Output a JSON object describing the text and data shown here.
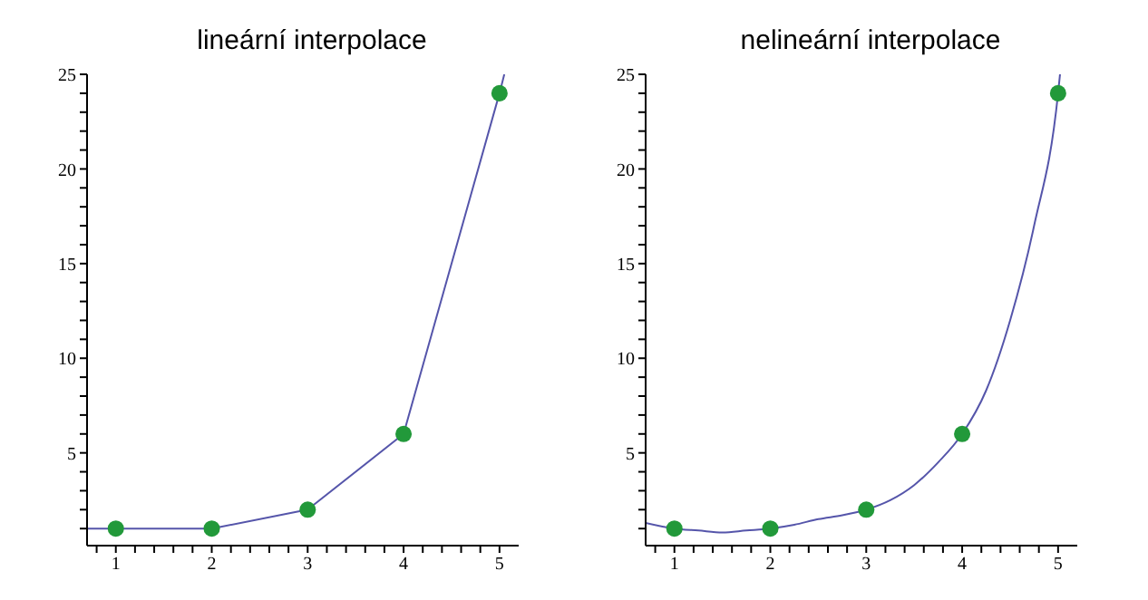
{
  "chart_data": [
    {
      "type": "line",
      "title": "lineární interpolace",
      "xlim": [
        0.7,
        5.2
      ],
      "ylim": [
        0.1,
        25
      ],
      "xticks": [
        {
          "value": 0.8,
          "label": null
        },
        1,
        {
          "value": 1.2,
          "label": null
        },
        {
          "value": 1.4,
          "label": null
        },
        {
          "value": 1.6,
          "label": null
        },
        {
          "value": 1.8,
          "label": null
        },
        2,
        {
          "value": 2.2,
          "label": null
        },
        {
          "value": 2.4,
          "label": null
        },
        {
          "value": 2.6,
          "label": null
        },
        {
          "value": 2.8,
          "label": null
        },
        3,
        {
          "value": 3.2,
          "label": null
        },
        {
          "value": 3.4,
          "label": null
        },
        {
          "value": 3.6,
          "label": null
        },
        {
          "value": 3.8,
          "label": null
        },
        4,
        {
          "value": 4.2,
          "label": null
        },
        {
          "value": 4.4,
          "label": null
        },
        {
          "value": 4.6,
          "label": null
        },
        {
          "value": 4.8,
          "label": null
        },
        5
      ],
      "yticks": [
        {
          "value": 1,
          "label": null
        },
        {
          "value": 2,
          "label": null
        },
        {
          "value": 3,
          "label": null
        },
        {
          "value": 4,
          "label": null
        },
        5,
        {
          "value": 6,
          "label": null
        },
        {
          "value": 7,
          "label": null
        },
        {
          "value": 8,
          "label": null
        },
        {
          "value": 9,
          "label": null
        },
        10,
        {
          "value": 11,
          "label": null
        },
        {
          "value": 12,
          "label": null
        },
        {
          "value": 13,
          "label": null
        },
        {
          "value": 14,
          "label": null
        },
        15,
        {
          "value": 16,
          "label": null
        },
        {
          "value": 17,
          "label": null
        },
        {
          "value": 18,
          "label": null
        },
        {
          "value": 19,
          "label": null
        },
        20,
        {
          "value": 21,
          "label": null
        },
        {
          "value": 22,
          "label": null
        },
        {
          "value": 23,
          "label": null
        },
        {
          "value": 24,
          "label": null
        },
        25
      ],
      "series": [
        {
          "color": "#5555aa",
          "marker": "none",
          "x": [
            0.7,
            1,
            2,
            3,
            4,
            5,
            5.05
          ],
          "values": [
            1,
            1,
            1,
            2,
            6,
            24,
            25
          ]
        },
        {
          "type": "scatter",
          "color": "#22993a",
          "marker": "circle",
          "x": [
            1,
            2,
            3,
            4,
            5
          ],
          "values": [
            1,
            1,
            2,
            6,
            24
          ]
        }
      ]
    },
    {
      "type": "line",
      "title": "nelineární interpolace",
      "xlim": [
        0.7,
        5.2
      ],
      "ylim": [
        0.1,
        25
      ],
      "xticks": [
        {
          "value": 0.8,
          "label": null
        },
        1,
        {
          "value": 1.2,
          "label": null
        },
        {
          "value": 1.4,
          "label": null
        },
        {
          "value": 1.6,
          "label": null
        },
        {
          "value": 1.8,
          "label": null
        },
        2,
        {
          "value": 2.2,
          "label": null
        },
        {
          "value": 2.4,
          "label": null
        },
        {
          "value": 2.6,
          "label": null
        },
        {
          "value": 2.8,
          "label": null
        },
        3,
        {
          "value": 3.2,
          "label": null
        },
        {
          "value": 3.4,
          "label": null
        },
        {
          "value": 3.6,
          "label": null
        },
        {
          "value": 3.8,
          "label": null
        },
        4,
        {
          "value": 4.2,
          "label": null
        },
        {
          "value": 4.4,
          "label": null
        },
        {
          "value": 4.6,
          "label": null
        },
        {
          "value": 4.8,
          "label": null
        },
        5
      ],
      "yticks": [
        {
          "value": 1,
          "label": null
        },
        {
          "value": 2,
          "label": null
        },
        {
          "value": 3,
          "label": null
        },
        {
          "value": 4,
          "label": null
        },
        5,
        {
          "value": 6,
          "label": null
        },
        {
          "value": 7,
          "label": null
        },
        {
          "value": 8,
          "label": null
        },
        {
          "value": 9,
          "label": null
        },
        10,
        {
          "value": 11,
          "label": null
        },
        {
          "value": 12,
          "label": null
        },
        {
          "value": 13,
          "label": null
        },
        {
          "value": 14,
          "label": null
        },
        15,
        {
          "value": 16,
          "label": null
        },
        {
          "value": 17,
          "label": null
        },
        {
          "value": 18,
          "label": null
        },
        {
          "value": 19,
          "label": null
        },
        20,
        {
          "value": 21,
          "label": null
        },
        {
          "value": 22,
          "label": null
        },
        {
          "value": 23,
          "label": null
        },
        {
          "value": 24,
          "label": null
        },
        25
      ],
      "series": [
        {
          "color": "#5555aa",
          "marker": "none",
          "line_style": "solid",
          "x": [
            0.7,
            1,
            1.25,
            1.5,
            1.75,
            2,
            2.25,
            2.5,
            2.75,
            3,
            3.25,
            3.5,
            3.75,
            4,
            4.25,
            4.5,
            4.75,
            5,
            5.02
          ],
          "values": [
            1.3,
            1,
            0.9,
            0.8,
            0.9,
            1,
            1.2,
            1.5,
            1.7,
            2,
            2.5,
            3.3,
            4.5,
            6,
            8.3,
            12,
            17,
            24,
            25
          ]
        },
        {
          "type": "scatter",
          "color": "#22993a",
          "marker": "circle",
          "x": [
            1,
            2,
            3,
            4,
            5
          ],
          "values": [
            1,
            1,
            2,
            6,
            24
          ]
        }
      ]
    }
  ]
}
